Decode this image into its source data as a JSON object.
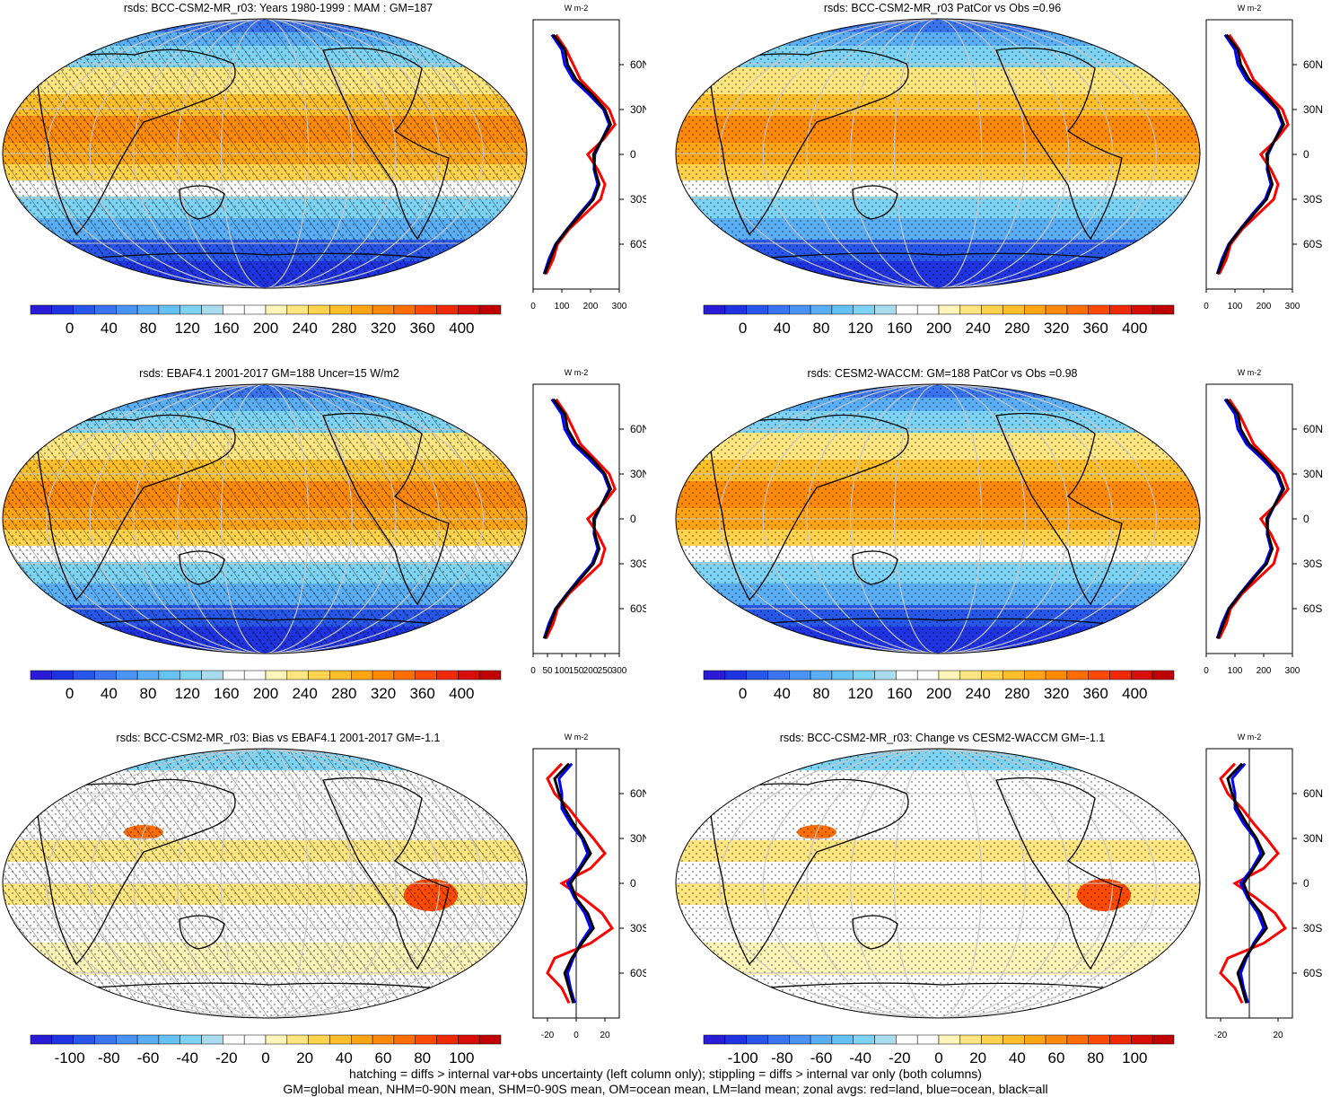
{
  "variable": "rsds",
  "units_label": "W m-2",
  "panels": [
    {
      "id": "p1",
      "title": "rsds: BCC-CSM2-MR_r03: Years 1980-1999 : MAM : GM=187",
      "kind": "abs",
      "hatch": true,
      "stipple": true,
      "colorbar_labels": [
        "0",
        "40",
        "80",
        "120",
        "160",
        "200",
        "240",
        "280",
        "320",
        "360",
        "400"
      ],
      "zonal_xticks": [
        "0",
        "100",
        "200",
        "300"
      ],
      "zonal_yticks": [
        "60N",
        "30N",
        "0",
        "30S",
        "60S"
      ]
    },
    {
      "id": "p2",
      "title": "rsds: BCC-CSM2-MR_r03 PatCor vs Obs =0.96",
      "kind": "abs",
      "hatch": false,
      "stipple": true,
      "colorbar_labels": [
        "0",
        "40",
        "80",
        "120",
        "160",
        "200",
        "240",
        "280",
        "320",
        "360",
        "400"
      ],
      "zonal_xticks": [
        "0",
        "100",
        "200",
        "300"
      ],
      "zonal_yticks": [
        "60N",
        "30N",
        "0",
        "30S",
        "60S"
      ]
    },
    {
      "id": "p3",
      "title": "rsds: EBAF4.1 2001-2017 GM=188 Uncer=15 W/m2",
      "kind": "abs",
      "hatch": true,
      "stipple": true,
      "colorbar_labels": [
        "0",
        "40",
        "80",
        "120",
        "160",
        "200",
        "240",
        "280",
        "320",
        "360",
        "400"
      ],
      "zonal_xticks": [
        "0",
        "50",
        "100",
        "150",
        "200",
        "250",
        "300"
      ],
      "zonal_yticks": [
        "60N",
        "30N",
        "0",
        "30S",
        "60S"
      ]
    },
    {
      "id": "p4",
      "title": "rsds: CESM2-WACCM: GM=188 PatCor vs Obs =0.98",
      "kind": "abs",
      "hatch": false,
      "stipple": true,
      "colorbar_labels": [
        "0",
        "40",
        "80",
        "120",
        "160",
        "200",
        "240",
        "280",
        "320",
        "360",
        "400"
      ],
      "zonal_xticks": [
        "0",
        "100",
        "200",
        "300"
      ],
      "zonal_yticks": [
        "60N",
        "30N",
        "0",
        "30S",
        "60S"
      ]
    },
    {
      "id": "p5",
      "title": "rsds: BCC-CSM2-MR_r03: Bias vs EBAF4.1 2001-2017 GM=-1.1",
      "kind": "diff",
      "hatch": true,
      "stipple": true,
      "colorbar_labels": [
        "-100",
        "-80",
        "-60",
        "-40",
        "-20",
        "0",
        "20",
        "40",
        "60",
        "80",
        "100"
      ],
      "zonal_xticks": [
        "-20",
        "0",
        "20"
      ],
      "zonal_yticks": [
        "60N",
        "30N",
        "0",
        "30S",
        "60S"
      ]
    },
    {
      "id": "p6",
      "title": "rsds: BCC-CSM2-MR_r03: Change vs CESM2-WACCM GM=-1.1",
      "kind": "diff",
      "hatch": false,
      "stipple": true,
      "colorbar_labels": [
        "-100",
        "-80",
        "-60",
        "-40",
        "-20",
        "0",
        "20",
        "40",
        "60",
        "80",
        "100"
      ],
      "zonal_xticks": [
        "-20",
        "20"
      ],
      "zonal_yticks": [
        "60N",
        "30N",
        "0",
        "30S",
        "60S"
      ]
    }
  ],
  "palettes": {
    "abs": [
      "#2a1bd6",
      "#1f33e0",
      "#2756e8",
      "#3b74ef",
      "#4a93f3",
      "#5aaef5",
      "#66c2f2",
      "#7dd3f3",
      "#aadcf0",
      "#ffffff",
      "#ffffff",
      "#fff5b8",
      "#ffe680",
      "#ffd34d",
      "#ffbf2a",
      "#ffa514",
      "#ff8a0a",
      "#ff6d05",
      "#ff4a00",
      "#f02a00",
      "#d80e00",
      "#c00000"
    ],
    "diff": [
      "#2a1bd6",
      "#1f33e0",
      "#2756e8",
      "#3b74ef",
      "#4a93f3",
      "#5aaef5",
      "#66c2f2",
      "#7dd3f3",
      "#aadcf0",
      "#ffffff",
      "#ffffff",
      "#fff5b8",
      "#ffe680",
      "#ffd34d",
      "#ffbf2a",
      "#ffa514",
      "#ff8a0a",
      "#ff6d05",
      "#ff4a00",
      "#f02a00",
      "#d80e00",
      "#c00000"
    ]
  },
  "zonal_series_colors": {
    "land": "#ff0000",
    "ocean": "#0000ff",
    "all": "#000000"
  },
  "zonal_data": {
    "lat": [
      80,
      70,
      60,
      50,
      40,
      30,
      20,
      10,
      0,
      -10,
      -20,
      -30,
      -40,
      -50,
      -60,
      -70,
      -80
    ],
    "abs_all": [
      70,
      110,
      120,
      150,
      205,
      250,
      270,
      240,
      210,
      215,
      230,
      210,
      165,
      120,
      80,
      60,
      40
    ],
    "abs_land": [
      80,
      115,
      140,
      165,
      215,
      265,
      285,
      245,
      190,
      225,
      250,
      235,
      180,
      125,
      85,
      70,
      45
    ],
    "abs_ocean": [
      65,
      100,
      110,
      140,
      195,
      245,
      265,
      240,
      215,
      212,
      225,
      205,
      160,
      118,
      78,
      55,
      38
    ],
    "diff_all": [
      -5,
      -15,
      -12,
      -8,
      -2,
      5,
      10,
      3,
      -4,
      0,
      8,
      12,
      4,
      -3,
      -8,
      -5,
      -2
    ],
    "diff_land": [
      -10,
      -20,
      -15,
      -5,
      3,
      12,
      20,
      10,
      -10,
      5,
      18,
      25,
      10,
      -15,
      -20,
      -10,
      -5
    ],
    "diff_ocean": [
      -3,
      -12,
      -10,
      -10,
      -4,
      4,
      8,
      2,
      -6,
      -1,
      6,
      10,
      3,
      -2,
      -6,
      -4,
      -1
    ]
  },
  "footer": {
    "line1": "hatching = diffs > internal var+obs uncertainty (left column only); stippling = diffs > internal var only (both columns)",
    "line2": "GM=global mean, NHM=0-90N mean, SHM=0-90S mean, OM=ocean mean, LM=land mean; zonal avgs: red=land, blue=ocean, black=all"
  }
}
